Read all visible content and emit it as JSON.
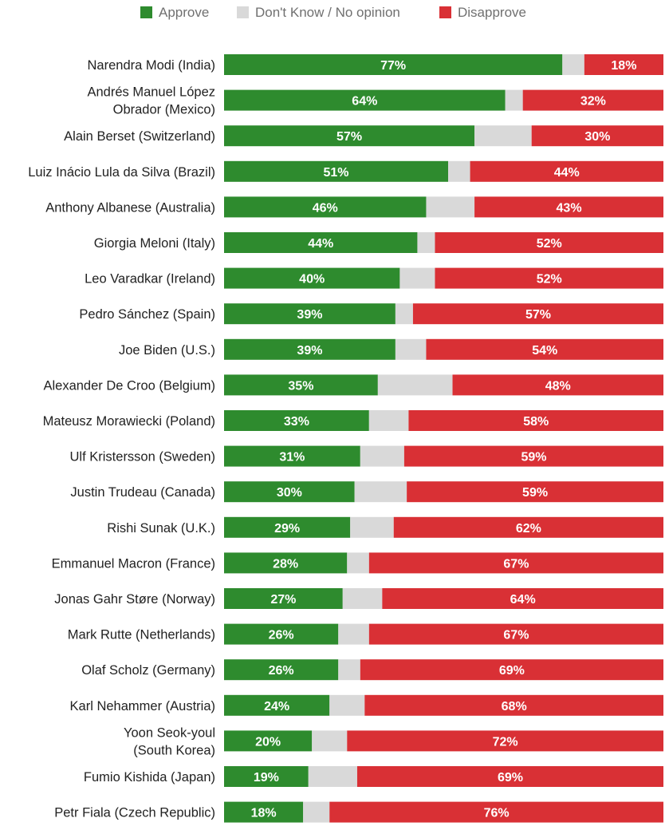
{
  "chart_data": {
    "type": "bar",
    "orientation": "horizontal",
    "stacked": true,
    "legend_position": "top",
    "legend": [
      {
        "name": "Approve",
        "color": "#2e8b2e"
      },
      {
        "name": "Don't Know / No opinion",
        "color": "#d9d9d9"
      },
      {
        "name": "Disapprove",
        "color": "#d93035"
      }
    ],
    "xlim": [
      0,
      100
    ],
    "rows": [
      {
        "label": [
          "Narendra Modi (India)"
        ],
        "approve": 77,
        "dontknow": 5,
        "disapprove": 18,
        "approve_label": "77%",
        "disapprove_label": "18%"
      },
      {
        "label": [
          "Andrés Manuel López",
          "Obrador (Mexico)"
        ],
        "approve": 64,
        "dontknow": 4,
        "disapprove": 32,
        "approve_label": "64%",
        "disapprove_label": "32%"
      },
      {
        "label": [
          "Alain Berset (Switzerland)"
        ],
        "approve": 57,
        "dontknow": 13,
        "disapprove": 30,
        "approve_label": "57%",
        "disapprove_label": "30%"
      },
      {
        "label": [
          "Luiz Inácio Lula da Silva (Brazil)"
        ],
        "approve": 51,
        "dontknow": 5,
        "disapprove": 44,
        "approve_label": "51%",
        "disapprove_label": "44%"
      },
      {
        "label": [
          "Anthony Albanese (Australia)"
        ],
        "approve": 46,
        "dontknow": 11,
        "disapprove": 43,
        "approve_label": "46%",
        "disapprove_label": "43%"
      },
      {
        "label": [
          "Giorgia Meloni (Italy)"
        ],
        "approve": 44,
        "dontknow": 4,
        "disapprove": 52,
        "approve_label": "44%",
        "disapprove_label": "52%"
      },
      {
        "label": [
          "Leo Varadkar (Ireland)"
        ],
        "approve": 40,
        "dontknow": 8,
        "disapprove": 52,
        "approve_label": "40%",
        "disapprove_label": "52%"
      },
      {
        "label": [
          "Pedro Sánchez (Spain)"
        ],
        "approve": 39,
        "dontknow": 4,
        "disapprove": 57,
        "approve_label": "39%",
        "disapprove_label": "57%"
      },
      {
        "label": [
          "Joe Biden (U.S.)"
        ],
        "approve": 39,
        "dontknow": 7,
        "disapprove": 54,
        "approve_label": "39%",
        "disapprove_label": "54%"
      },
      {
        "label": [
          "Alexander De Croo (Belgium)"
        ],
        "approve": 35,
        "dontknow": 17,
        "disapprove": 48,
        "approve_label": "35%",
        "disapprove_label": "48%"
      },
      {
        "label": [
          "Mateusz Morawiecki (Poland)"
        ],
        "approve": 33,
        "dontknow": 9,
        "disapprove": 58,
        "approve_label": "33%",
        "disapprove_label": "58%"
      },
      {
        "label": [
          "Ulf Kristersson (Sweden)"
        ],
        "approve": 31,
        "dontknow": 10,
        "disapprove": 59,
        "approve_label": "31%",
        "disapprove_label": "59%"
      },
      {
        "label": [
          "Justin Trudeau (Canada)"
        ],
        "approve": 30,
        "dontknow": 12,
        "disapprove": 59,
        "approve_label": "30%",
        "disapprove_label": "59%"
      },
      {
        "label": [
          "Rishi Sunak (U.K.)"
        ],
        "approve": 29,
        "dontknow": 10,
        "disapprove": 62,
        "approve_label": "29%",
        "disapprove_label": "62%"
      },
      {
        "label": [
          "Emmanuel Macron (France)"
        ],
        "approve": 28,
        "dontknow": 5,
        "disapprove": 67,
        "approve_label": "28%",
        "disapprove_label": "67%"
      },
      {
        "label": [
          "Jonas Gahr Støre (Norway)"
        ],
        "approve": 27,
        "dontknow": 9,
        "disapprove": 64,
        "approve_label": "27%",
        "disapprove_label": "64%"
      },
      {
        "label": [
          "Mark Rutte (Netherlands)"
        ],
        "approve": 26,
        "dontknow": 7,
        "disapprove": 67,
        "approve_label": "26%",
        "disapprove_label": "67%"
      },
      {
        "label": [
          "Olaf Scholz (Germany)"
        ],
        "approve": 26,
        "dontknow": 5,
        "disapprove": 69,
        "approve_label": "26%",
        "disapprove_label": "69%"
      },
      {
        "label": [
          "Karl Nehammer (Austria)"
        ],
        "approve": 24,
        "dontknow": 8,
        "disapprove": 68,
        "approve_label": "24%",
        "disapprove_label": "68%"
      },
      {
        "label": [
          "Yoon Seok-youl",
          "(South Korea)"
        ],
        "approve": 20,
        "dontknow": 8,
        "disapprove": 72,
        "approve_label": "20%",
        "disapprove_label": "72%"
      },
      {
        "label": [
          "Fumio Kishida (Japan)"
        ],
        "approve": 19,
        "dontknow": 11,
        "disapprove": 69,
        "approve_label": "19%",
        "disapprove_label": "69%"
      },
      {
        "label": [
          "Petr Fiala (Czech Republic)"
        ],
        "approve": 18,
        "dontknow": 6,
        "disapprove": 76,
        "approve_label": "18%",
        "disapprove_label": "76%"
      }
    ]
  }
}
